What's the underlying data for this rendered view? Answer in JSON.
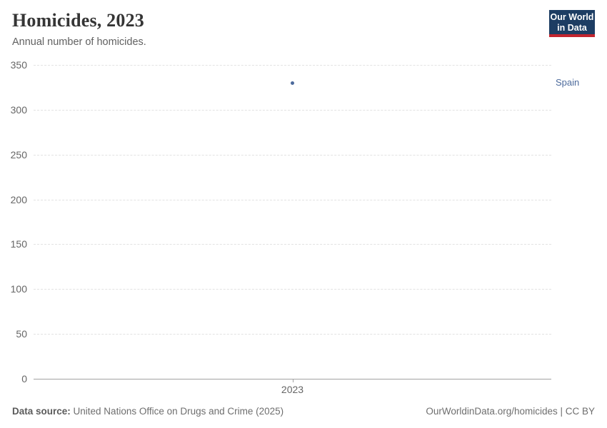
{
  "header": {
    "title": "Homicides, 2023",
    "subtitle": "Annual number of homicides."
  },
  "logo": {
    "line1": "Our World",
    "line2": "in Data",
    "background": "#1d3d63",
    "accent": "#c3252f"
  },
  "chart_data": {
    "type": "scatter",
    "title": "Homicides, 2023",
    "xlabel": "",
    "ylabel": "",
    "x": [
      2023
    ],
    "xticks": [
      "2023"
    ],
    "series": [
      {
        "name": "Spain",
        "values": [
          330
        ],
        "color": "#4c6a9c"
      }
    ],
    "ylim": [
      0,
      350
    ],
    "yticks": [
      0,
      50,
      100,
      150,
      200,
      250,
      300,
      350
    ],
    "grid": true,
    "gridline_style": "dashed",
    "legend_position": "right-of-point"
  },
  "footer": {
    "source_label": "Data source:",
    "source_text": " United Nations Office on Drugs and Crime (2025)",
    "link": "OurWorldinData.org/homicides | CC BY"
  }
}
